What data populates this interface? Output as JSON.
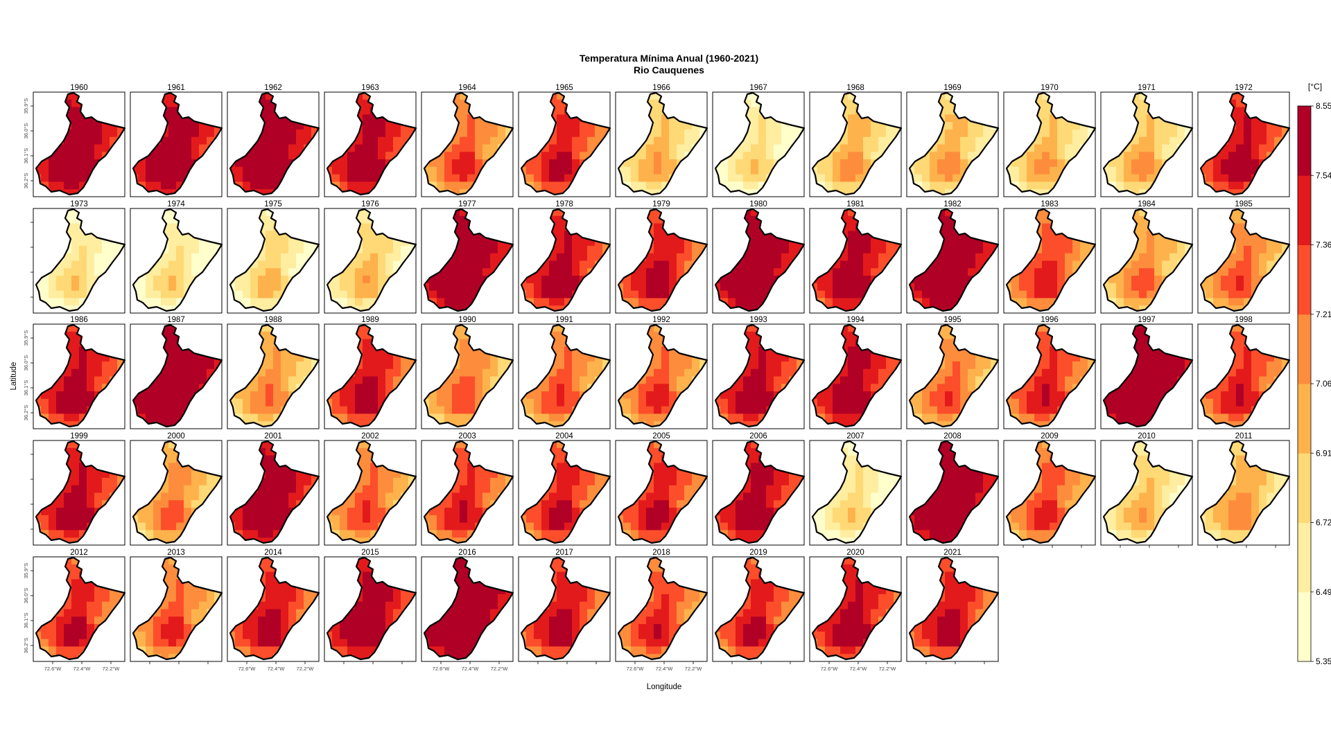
{
  "chart_data": {
    "type": "heatmap",
    "title": "Temperatura Mínima Anual (1960-2021)",
    "subtitle": "Rio Cauquenes",
    "xlabel": "Longitude",
    "ylabel": "Latitude",
    "x_tick_labels": [
      "72.6°W",
      "72.4°W",
      "72.2°W"
    ],
    "y_tick_labels": [
      "36.2°S",
      "36.1°S",
      "36.0°S",
      "35.9°S"
    ],
    "colorbar": {
      "unit": "[°C]",
      "breaks": [
        5.35,
        6.49,
        6.72,
        6.91,
        7.06,
        7.21,
        7.36,
        7.54,
        8.55
      ],
      "colors": [
        "#ffffcc",
        "#ffeda0",
        "#fed976",
        "#feb24c",
        "#fd8d3c",
        "#fc4e2a",
        "#e31a1c",
        "#b10026"
      ]
    },
    "panels": [
      {
        "year": "1960",
        "level": 6.5
      },
      {
        "year": "1961",
        "level": 6.4
      },
      {
        "year": "1962",
        "level": 6.7
      },
      {
        "year": "1963",
        "level": 6.0
      },
      {
        "year": "1964",
        "level": 3.8
      },
      {
        "year": "1965",
        "level": 5.0
      },
      {
        "year": "1966",
        "level": 1.6
      },
      {
        "year": "1967",
        "level": 0.5
      },
      {
        "year": "1968",
        "level": 2.0
      },
      {
        "year": "1969",
        "level": 1.9
      },
      {
        "year": "1970",
        "level": 1.7
      },
      {
        "year": "1971",
        "level": 1.8
      },
      {
        "year": "1972",
        "level": 5.5
      },
      {
        "year": "1973",
        "level": 0.4
      },
      {
        "year": "1974",
        "level": 0.4
      },
      {
        "year": "1975",
        "level": 1.0
      },
      {
        "year": "1976",
        "level": 1.3
      },
      {
        "year": "1977",
        "level": 7.0
      },
      {
        "year": "1978",
        "level": 5.6
      },
      {
        "year": "1979",
        "level": 5.2
      },
      {
        "year": "1980",
        "level": 7.0
      },
      {
        "year": "1981",
        "level": 6.0
      },
      {
        "year": "1982",
        "level": 7.0
      },
      {
        "year": "1983",
        "level": 4.2
      },
      {
        "year": "1984",
        "level": 2.8
      },
      {
        "year": "1985",
        "level": 3.4
      },
      {
        "year": "1986",
        "level": 5.6
      },
      {
        "year": "1987",
        "level": 7.5
      },
      {
        "year": "1988",
        "level": 2.6
      },
      {
        "year": "1989",
        "level": 5.2
      },
      {
        "year": "1990",
        "level": 3.2
      },
      {
        "year": "1991",
        "level": 3.6
      },
      {
        "year": "1992",
        "level": 3.8
      },
      {
        "year": "1993",
        "level": 5.6
      },
      {
        "year": "1994",
        "level": 6.0
      },
      {
        "year": "1995",
        "level": 3.4
      },
      {
        "year": "1996",
        "level": 4.6
      },
      {
        "year": "1997",
        "level": 7.8
      },
      {
        "year": "1998",
        "level": 4.6
      },
      {
        "year": "1999",
        "level": 5.6
      },
      {
        "year": "2000",
        "level": 3.0
      },
      {
        "year": "2001",
        "level": 6.5
      },
      {
        "year": "2002",
        "level": 3.6
      },
      {
        "year": "2003",
        "level": 4.6
      },
      {
        "year": "2004",
        "level": 5.0
      },
      {
        "year": "2005",
        "level": 5.0
      },
      {
        "year": "2006",
        "level": 6.0
      },
      {
        "year": "2007",
        "level": 0.5
      },
      {
        "year": "2008",
        "level": 7.2
      },
      {
        "year": "2009",
        "level": 4.0
      },
      {
        "year": "2010",
        "level": 1.4
      },
      {
        "year": "2011",
        "level": 2.2
      },
      {
        "year": "2012",
        "level": 5.0
      },
      {
        "year": "2013",
        "level": 3.8
      },
      {
        "year": "2014",
        "level": 5.2
      },
      {
        "year": "2015",
        "level": 6.2
      },
      {
        "year": "2016",
        "level": 7.3
      },
      {
        "year": "2017",
        "level": 5.2
      },
      {
        "year": "2018",
        "level": 4.4
      },
      {
        "year": "2019",
        "level": 5.0
      },
      {
        "year": "2020",
        "level": 5.6
      },
      {
        "year": "2021",
        "level": 5.2
      }
    ]
  }
}
